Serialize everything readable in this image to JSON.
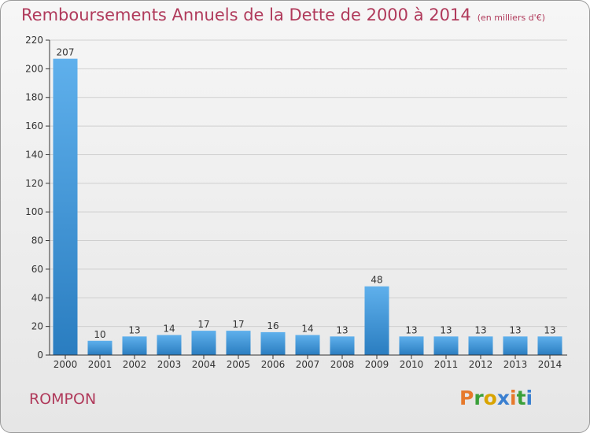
{
  "header": {
    "title": "Remboursements Annuels de la Dette de 2000 à 2014",
    "unit": "(en milliers d'€)"
  },
  "footer": {
    "commune": "ROMPON",
    "logo_letters": [
      "P",
      "r",
      "o",
      "x",
      "i",
      "t",
      "i"
    ],
    "logo_colors": [
      "#e6792b",
      "#3aa03a",
      "#d9a400",
      "#3a7fd0",
      "#e6792b",
      "#3aa03a",
      "#3a7fd0"
    ]
  },
  "colors": {
    "bar_light": "#5fb0ec",
    "bar_dark": "#2a7dc0",
    "title": "#b03a5b",
    "grid": "#cfcfcf",
    "axis": "#333333"
  },
  "chart_data": {
    "type": "bar",
    "categories": [
      "2000",
      "2001",
      "2002",
      "2003",
      "2004",
      "2005",
      "2006",
      "2007",
      "2008",
      "2009",
      "2010",
      "2011",
      "2012",
      "2013",
      "2014"
    ],
    "values": [
      207,
      10,
      13,
      14,
      17,
      17,
      16,
      14,
      13,
      48,
      13,
      13,
      13,
      13,
      13
    ],
    "data_labels": [
      "207",
      "10",
      "13",
      "14",
      "17",
      "17",
      "16",
      "14",
      "13",
      "48",
      "13",
      "13",
      "13",
      "13",
      "13"
    ],
    "ylim": [
      0,
      220
    ],
    "yticks": [
      0,
      20,
      40,
      60,
      80,
      100,
      120,
      140,
      160,
      180,
      200,
      220
    ],
    "ytick_labels": [
      "0",
      "20",
      "40",
      "60",
      "80",
      "100",
      "120",
      "140",
      "160",
      "180",
      "200",
      "220"
    ],
    "grid": true,
    "xlabel": "",
    "ylabel": ""
  }
}
